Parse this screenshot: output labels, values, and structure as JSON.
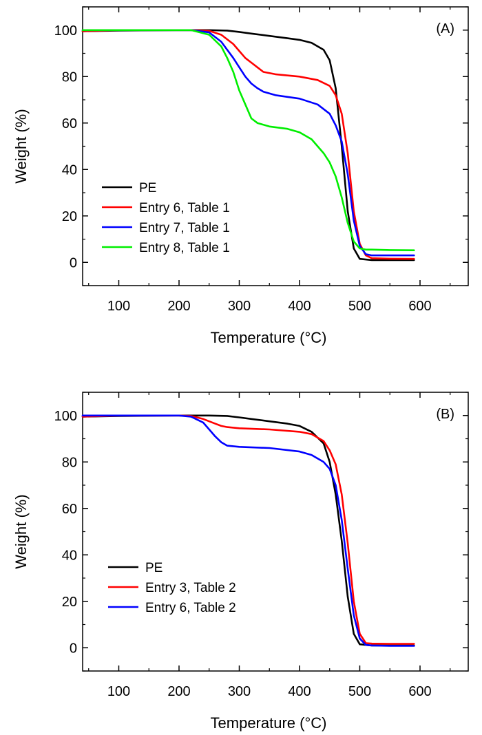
{
  "chart_data": [
    {
      "type": "line",
      "panel_label": "(A)",
      "xlabel": "Temperature (°C)",
      "ylabel": "Weight (%)",
      "xlim": [
        40,
        680
      ],
      "ylim": [
        -10,
        110
      ],
      "xticks": [
        100,
        200,
        300,
        400,
        500,
        600
      ],
      "yticks": [
        0,
        20,
        40,
        60,
        80,
        100
      ],
      "grid": false,
      "legend_position": "lower-left",
      "series": [
        {
          "name": "PE",
          "color": "#000000",
          "x": [
            40,
            100,
            200,
            250,
            280,
            300,
            320,
            350,
            380,
            400,
            420,
            440,
            450,
            460,
            470,
            480,
            490,
            500,
            520,
            550,
            590
          ],
          "y": [
            99.5,
            99.8,
            100,
            100,
            99.8,
            99.2,
            98.5,
            97.5,
            96.5,
            95.8,
            94.5,
            91.5,
            87,
            75,
            50,
            22,
            6,
            1.5,
            1,
            1,
            1
          ]
        },
        {
          "name": "Entry 6, Table 1",
          "color": "#ff0000",
          "x": [
            40,
            100,
            200,
            220,
            250,
            270,
            290,
            300,
            310,
            320,
            330,
            340,
            360,
            400,
            430,
            450,
            460,
            470,
            480,
            490,
            500,
            510,
            520,
            550,
            590
          ],
          "y": [
            99.5,
            100,
            100,
            100,
            99.7,
            98,
            94,
            91,
            88,
            86,
            84,
            82,
            81,
            80,
            78.5,
            76,
            72,
            64,
            47,
            22,
            8,
            3,
            1.8,
            1.6,
            1.5
          ]
        },
        {
          "name": "Entry 7, Table 1",
          "color": "#0000ff",
          "x": [
            40,
            100,
            200,
            220,
            250,
            270,
            290,
            300,
            310,
            320,
            330,
            340,
            360,
            400,
            430,
            450,
            460,
            470,
            480,
            490,
            500,
            510,
            520,
            550,
            590
          ],
          "y": [
            100,
            100,
            100,
            100,
            99,
            95,
            88,
            84,
            80,
            77,
            75,
            73.5,
            72,
            70.5,
            68,
            64,
            59,
            52,
            38,
            18,
            7,
            3.5,
            3,
            3,
            3
          ]
        },
        {
          "name": "Entry 8, Table 1",
          "color": "#00ee00",
          "x": [
            40,
            100,
            200,
            220,
            250,
            270,
            280,
            290,
            300,
            310,
            320,
            330,
            350,
            380,
            400,
            420,
            440,
            450,
            460,
            470,
            480,
            490,
            500,
            510,
            520,
            550,
            590
          ],
          "y": [
            100,
            100,
            100,
            100,
            98,
            93,
            88,
            82,
            74,
            68,
            62,
            60,
            58.5,
            57.5,
            56,
            53,
            47,
            43,
            37,
            28,
            17,
            9,
            6,
            5.5,
            5.5,
            5.3,
            5.2
          ]
        }
      ]
    },
    {
      "type": "line",
      "panel_label": "(B)",
      "xlabel": "Temperature (°C)",
      "ylabel": "Weight (%)",
      "xlim": [
        40,
        680
      ],
      "ylim": [
        -10,
        110
      ],
      "xticks": [
        100,
        200,
        300,
        400,
        500,
        600
      ],
      "yticks": [
        0,
        20,
        40,
        60,
        80,
        100
      ],
      "grid": false,
      "legend_position": "lower-left",
      "series": [
        {
          "name": "PE",
          "color": "#000000",
          "x": [
            40,
            100,
            200,
            250,
            280,
            300,
            320,
            350,
            380,
            400,
            420,
            440,
            450,
            460,
            470,
            480,
            490,
            500,
            520,
            550,
            590
          ],
          "y": [
            99.5,
            99.8,
            100,
            100,
            99.8,
            99.2,
            98.5,
            97.5,
            96.5,
            95.5,
            93,
            88,
            80,
            66,
            46,
            22,
            6,
            1.5,
            1,
            1,
            1
          ]
        },
        {
          "name": "Entry 3, Table 2",
          "color": "#ff0000",
          "x": [
            40,
            100,
            200,
            220,
            240,
            260,
            270,
            280,
            300,
            350,
            400,
            420,
            440,
            450,
            460,
            470,
            480,
            490,
            500,
            510,
            520,
            550,
            590
          ],
          "y": [
            99.5,
            100,
            100,
            99.8,
            98.5,
            96.5,
            95.5,
            95,
            94.5,
            94,
            93,
            92,
            89,
            85,
            79,
            66,
            45,
            20,
            6,
            2,
            1.8,
            1.7,
            1.7
          ]
        },
        {
          "name": "Entry 6, Table 2",
          "color": "#0000ff",
          "x": [
            40,
            100,
            200,
            220,
            240,
            250,
            260,
            270,
            280,
            300,
            350,
            400,
            420,
            440,
            450,
            460,
            470,
            480,
            490,
            500,
            510,
            520,
            550,
            590
          ],
          "y": [
            100,
            100,
            100,
            99.5,
            97,
            94,
            91,
            88.5,
            87,
            86.5,
            86,
            84.5,
            83,
            80,
            77,
            70,
            55,
            34,
            14,
            4,
            1.2,
            1,
            0.8,
            0.8
          ]
        }
      ]
    }
  ]
}
